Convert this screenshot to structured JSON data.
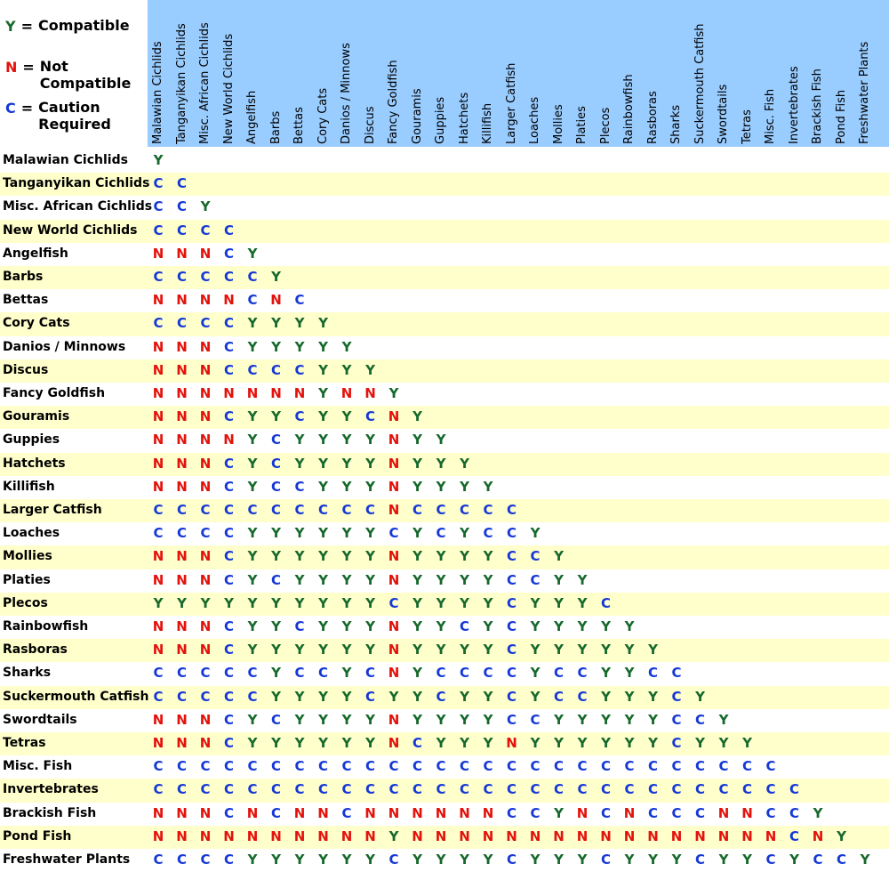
{
  "legend": [
    {
      "symbol": "Y",
      "sep": "=",
      "text": "Compatible"
    },
    {
      "symbol": "N",
      "sep": "=",
      "text": "Not Compatible"
    },
    {
      "symbol": "C",
      "sep": "=",
      "text": "Caution Required"
    }
  ],
  "colors": {
    "Y": "#16692b",
    "N": "#e3120b",
    "C": "#1538d6"
  },
  "columns": [
    "Malawian Cichlids",
    "Tanganyikan Cichlids",
    "Misc. African Cichlids",
    "New World Cichlids",
    "Angelfish",
    "Barbs",
    "Bettas",
    "Cory Cats",
    "Danios / Minnows",
    "Discus",
    "Fancy Goldfish",
    "Gouramis",
    "Guppies",
    "Hatchets",
    "Killifish",
    "Larger Catfish",
    "Loaches",
    "Mollies",
    "Platies",
    "Plecos",
    "Rainbowfish",
    "Rasboras",
    "Sharks",
    "Suckermouth Catfish",
    "Swordtails",
    "Tetras",
    "Misc. Fish",
    "Invertebrates",
    "Brackish Fish",
    "Pond Fish",
    "Freshwater Plants"
  ],
  "rows": [
    {
      "label": "Malawian Cichlids",
      "cells": [
        "Y"
      ]
    },
    {
      "label": "Tanganyikan Cichlids",
      "cells": [
        "C",
        "C"
      ]
    },
    {
      "label": "Misc. African Cichlids",
      "cells": [
        "C",
        "C",
        "Y"
      ]
    },
    {
      "label": "New World Cichlids",
      "cells": [
        "C",
        "C",
        "C",
        "C"
      ]
    },
    {
      "label": "Angelfish",
      "cells": [
        "N",
        "N",
        "N",
        "C",
        "Y"
      ]
    },
    {
      "label": "Barbs",
      "cells": [
        "C",
        "C",
        "C",
        "C",
        "C",
        "Y"
      ]
    },
    {
      "label": "Bettas",
      "cells": [
        "N",
        "N",
        "N",
        "N",
        "C",
        "N",
        "C"
      ]
    },
    {
      "label": "Cory Cats",
      "cells": [
        "C",
        "C",
        "C",
        "C",
        "Y",
        "Y",
        "Y",
        "Y"
      ]
    },
    {
      "label": "Danios / Minnows",
      "cells": [
        "N",
        "N",
        "N",
        "C",
        "Y",
        "Y",
        "Y",
        "Y",
        "Y"
      ]
    },
    {
      "label": "Discus",
      "cells": [
        "N",
        "N",
        "N",
        "C",
        "C",
        "C",
        "C",
        "Y",
        "Y",
        "Y"
      ]
    },
    {
      "label": "Fancy Goldfish",
      "cells": [
        "N",
        "N",
        "N",
        "N",
        "N",
        "N",
        "N",
        "Y",
        "N",
        "N",
        "Y"
      ]
    },
    {
      "label": "Gouramis",
      "cells": [
        "N",
        "N",
        "N",
        "C",
        "Y",
        "Y",
        "C",
        "Y",
        "Y",
        "C",
        "N",
        "Y"
      ]
    },
    {
      "label": "Guppies",
      "cells": [
        "N",
        "N",
        "N",
        "N",
        "Y",
        "C",
        "Y",
        "Y",
        "Y",
        "Y",
        "N",
        "Y",
        "Y"
      ]
    },
    {
      "label": "Hatchets",
      "cells": [
        "N",
        "N",
        "N",
        "C",
        "Y",
        "C",
        "Y",
        "Y",
        "Y",
        "Y",
        "N",
        "Y",
        "Y",
        "Y"
      ]
    },
    {
      "label": "Killifish",
      "cells": [
        "N",
        "N",
        "N",
        "C",
        "Y",
        "C",
        "C",
        "Y",
        "Y",
        "Y",
        "N",
        "Y",
        "Y",
        "Y",
        "Y"
      ]
    },
    {
      "label": "Larger Catfish",
      "cells": [
        "C",
        "C",
        "C",
        "C",
        "C",
        "C",
        "C",
        "C",
        "C",
        "C",
        "N",
        "C",
        "C",
        "C",
        "C",
        "C"
      ]
    },
    {
      "label": "Loaches",
      "cells": [
        "C",
        "C",
        "C",
        "C",
        "Y",
        "Y",
        "Y",
        "Y",
        "Y",
        "Y",
        "C",
        "Y",
        "C",
        "Y",
        "C",
        "C",
        "Y"
      ]
    },
    {
      "label": "Mollies",
      "cells": [
        "N",
        "N",
        "N",
        "C",
        "Y",
        "Y",
        "Y",
        "Y",
        "Y",
        "Y",
        "N",
        "Y",
        "Y",
        "Y",
        "Y",
        "C",
        "C",
        "Y"
      ]
    },
    {
      "label": "Platies",
      "cells": [
        "N",
        "N",
        "N",
        "C",
        "Y",
        "C",
        "Y",
        "Y",
        "Y",
        "Y",
        "N",
        "Y",
        "Y",
        "Y",
        "Y",
        "C",
        "C",
        "Y",
        "Y"
      ]
    },
    {
      "label": "Plecos",
      "cells": [
        "Y",
        "Y",
        "Y",
        "Y",
        "Y",
        "Y",
        "Y",
        "Y",
        "Y",
        "Y",
        "C",
        "Y",
        "Y",
        "Y",
        "Y",
        "C",
        "Y",
        "Y",
        "Y",
        "C"
      ]
    },
    {
      "label": "Rainbowfish",
      "cells": [
        "N",
        "N",
        "N",
        "C",
        "Y",
        "Y",
        "C",
        "Y",
        "Y",
        "Y",
        "N",
        "Y",
        "Y",
        "C",
        "Y",
        "C",
        "Y",
        "Y",
        "Y",
        "Y",
        "Y"
      ]
    },
    {
      "label": "Rasboras",
      "cells": [
        "N",
        "N",
        "N",
        "C",
        "Y",
        "Y",
        "Y",
        "Y",
        "Y",
        "Y",
        "N",
        "Y",
        "Y",
        "Y",
        "Y",
        "C",
        "Y",
        "Y",
        "Y",
        "Y",
        "Y",
        "Y"
      ]
    },
    {
      "label": "Sharks",
      "cells": [
        "C",
        "C",
        "C",
        "C",
        "C",
        "Y",
        "C",
        "C",
        "Y",
        "C",
        "N",
        "Y",
        "C",
        "C",
        "C",
        "C",
        "Y",
        "C",
        "C",
        "Y",
        "Y",
        "C",
        "C"
      ]
    },
    {
      "label": "Suckermouth Catfish",
      "cells": [
        "C",
        "C",
        "C",
        "C",
        "C",
        "Y",
        "Y",
        "Y",
        "Y",
        "C",
        "Y",
        "Y",
        "C",
        "Y",
        "Y",
        "C",
        "Y",
        "C",
        "C",
        "Y",
        "Y",
        "Y",
        "C",
        "Y"
      ]
    },
    {
      "label": "Swordtails",
      "cells": [
        "N",
        "N",
        "N",
        "C",
        "Y",
        "C",
        "Y",
        "Y",
        "Y",
        "Y",
        "N",
        "Y",
        "Y",
        "Y",
        "Y",
        "C",
        "C",
        "Y",
        "Y",
        "Y",
        "Y",
        "Y",
        "C",
        "C",
        "Y"
      ]
    },
    {
      "label": "Tetras",
      "cells": [
        "N",
        "N",
        "N",
        "C",
        "Y",
        "Y",
        "Y",
        "Y",
        "Y",
        "Y",
        "N",
        "C",
        "Y",
        "Y",
        "Y",
        "N",
        "Y",
        "Y",
        "Y",
        "Y",
        "Y",
        "Y",
        "C",
        "Y",
        "Y",
        "Y"
      ]
    },
    {
      "label": "Misc. Fish",
      "cells": [
        "C",
        "C",
        "C",
        "C",
        "C",
        "C",
        "C",
        "C",
        "C",
        "C",
        "C",
        "C",
        "C",
        "C",
        "C",
        "C",
        "C",
        "C",
        "C",
        "C",
        "C",
        "C",
        "C",
        "C",
        "C",
        "C",
        "C"
      ]
    },
    {
      "label": "Invertebrates",
      "cells": [
        "C",
        "C",
        "C",
        "C",
        "C",
        "C",
        "C",
        "C",
        "C",
        "C",
        "C",
        "C",
        "C",
        "C",
        "C",
        "C",
        "C",
        "C",
        "C",
        "C",
        "C",
        "C",
        "C",
        "C",
        "C",
        "C",
        "C",
        "C"
      ]
    },
    {
      "label": "Brackish Fish",
      "cells": [
        "N",
        "N",
        "N",
        "C",
        "N",
        "C",
        "N",
        "N",
        "C",
        "N",
        "N",
        "N",
        "N",
        "N",
        "N",
        "C",
        "C",
        "Y",
        "N",
        "C",
        "N",
        "C",
        "C",
        "C",
        "N",
        "N",
        "C",
        "C",
        "Y"
      ]
    },
    {
      "label": "Pond Fish",
      "cells": [
        "N",
        "N",
        "N",
        "N",
        "N",
        "N",
        "N",
        "N",
        "N",
        "N",
        "Y",
        "N",
        "N",
        "N",
        "N",
        "N",
        "N",
        "N",
        "N",
        "N",
        "N",
        "N",
        "N",
        "N",
        "N",
        "N",
        "N",
        "C",
        "N",
        "Y"
      ]
    },
    {
      "label": "Freshwater Plants",
      "cells": [
        "C",
        "C",
        "C",
        "C",
        "Y",
        "Y",
        "Y",
        "Y",
        "Y",
        "Y",
        "C",
        "Y",
        "Y",
        "Y",
        "Y",
        "C",
        "Y",
        "Y",
        "Y",
        "C",
        "Y",
        "Y",
        "Y",
        "C",
        "Y",
        "Y",
        "C",
        "Y",
        "C",
        "C",
        "Y"
      ]
    }
  ]
}
